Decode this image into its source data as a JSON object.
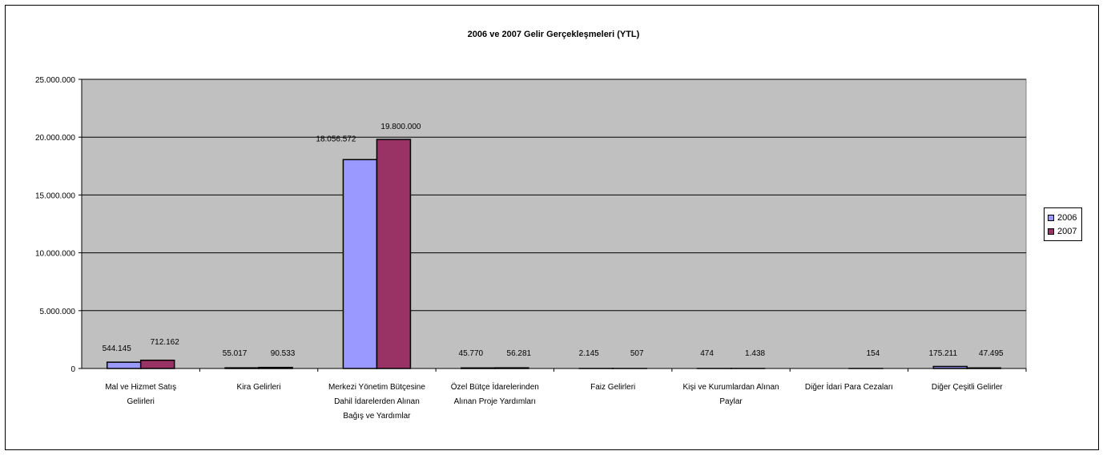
{
  "chart_data": {
    "type": "bar",
    "title": "2006 ve 2007 Gelir Gerçekleşmeleri (YTL)",
    "categories": [
      [
        "Mal ve Hizmet Satış",
        "Gelirleri"
      ],
      [
        "Kira Gelirleri"
      ],
      [
        "Merkezi Yönetim Bütçesine",
        "Dahil İdarelerden Alınan",
        "Bağış ve Yardımlar"
      ],
      [
        "Özel Bütçe İdarelerinden",
        "Alınan Proje Yardımları"
      ],
      [
        "Faiz Gelirleri"
      ],
      [
        "Kişi ve Kurumlardan Alınan",
        "Paylar"
      ],
      [
        "Diğer İdari Para Cezaları"
      ],
      [
        "Diğer Çeşitli Gelirler"
      ]
    ],
    "series": [
      {
        "name": "2006",
        "color": "#9999ff",
        "values": [
          544145,
          55017,
          18056572,
          45770,
          2145,
          474,
          null,
          175211
        ],
        "labels": [
          "544.145",
          "55.017",
          "18.056.572",
          "45.770",
          "2.145",
          "474",
          "",
          "175.211"
        ]
      },
      {
        "name": "2007",
        "color": "#993366",
        "values": [
          712162,
          90533,
          19800000,
          56281,
          507,
          1438,
          154,
          47495
        ],
        "labels": [
          "712.162",
          "90.533",
          "19.800.000",
          "56.281",
          "507",
          "1.438",
          "154",
          "47.495"
        ]
      }
    ],
    "ylim": [
      0,
      25000000
    ],
    "yticks": [
      0,
      5000000,
      10000000,
      15000000,
      20000000,
      25000000
    ],
    "ytick_labels": [
      "0",
      "5.000.000",
      "10.000.000",
      "15.000.000",
      "20.000.000",
      "25.000.000"
    ],
    "grid": true,
    "plot_background": "#c0c0c0",
    "legend_position": "right"
  }
}
